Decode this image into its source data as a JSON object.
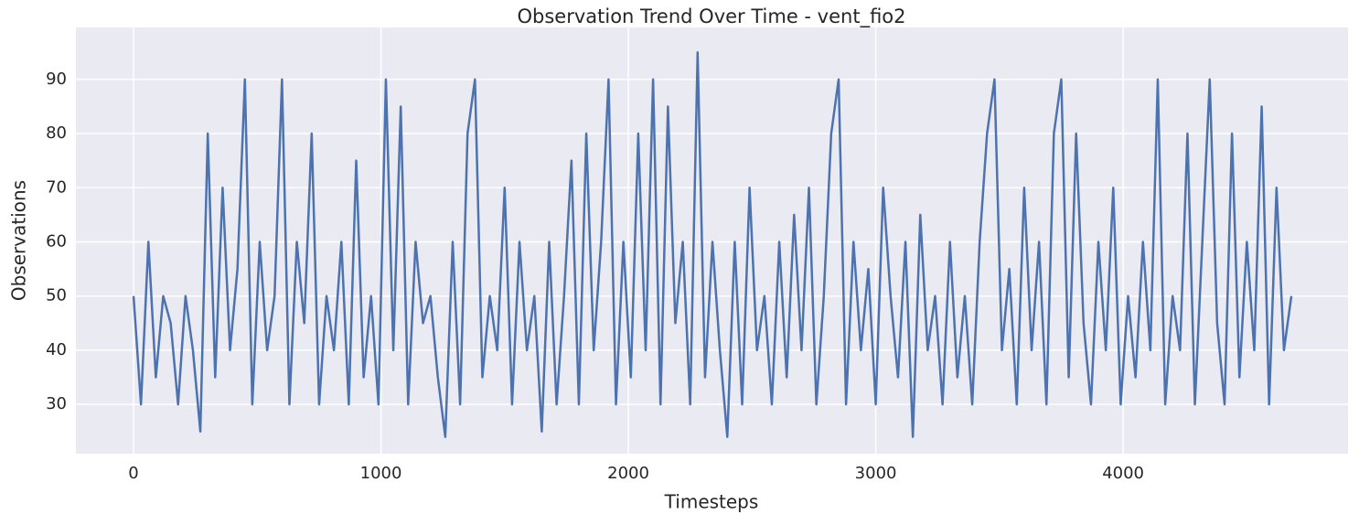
{
  "chart_data": {
    "type": "line",
    "title": "Observation Trend Over Time - vent_fio2",
    "x_label": "Timesteps",
    "y_label": "Observations",
    "x": [
      0,
      30,
      60,
      90,
      120,
      150,
      180,
      210,
      240,
      270,
      300,
      330,
      360,
      390,
      420,
      450,
      480,
      510,
      540,
      570,
      600,
      630,
      660,
      690,
      720,
      750,
      780,
      810,
      840,
      870,
      900,
      930,
      960,
      990,
      1020,
      1050,
      1080,
      1110,
      1140,
      1170,
      1200,
      1230,
      1260,
      1290,
      1320,
      1350,
      1380,
      1410,
      1440,
      1470,
      1500,
      1530,
      1560,
      1590,
      1620,
      1650,
      1680,
      1710,
      1740,
      1770,
      1800,
      1830,
      1860,
      1890,
      1920,
      1950,
      1980,
      2010,
      2040,
      2070,
      2100,
      2130,
      2160,
      2190,
      2220,
      2250,
      2280,
      2310,
      2340,
      2370,
      2400,
      2430,
      2460,
      2490,
      2520,
      2550,
      2580,
      2610,
      2640,
      2670,
      2700,
      2730,
      2760,
      2790,
      2820,
      2850,
      2880,
      2910,
      2940,
      2970,
      3000,
      3030,
      3060,
      3090,
      3120,
      3150,
      3180,
      3210,
      3240,
      3270,
      3300,
      3330,
      3360,
      3390,
      3420,
      3450,
      3480,
      3510,
      3540,
      3570,
      3600,
      3630,
      3660,
      3690,
      3720,
      3750,
      3780,
      3810,
      3840,
      3870,
      3900,
      3930,
      3960,
      3990,
      4020,
      4050,
      4080,
      4110,
      4140,
      4170,
      4200,
      4230,
      4260,
      4290,
      4320,
      4350,
      4380,
      4410,
      4440,
      4470,
      4500,
      4530,
      4560,
      4590,
      4620,
      4650,
      4680
    ],
    "series": [
      {
        "name": "vent_fio2",
        "color": "#4c72b0",
        "values": [
          50,
          30,
          60,
          35,
          50,
          45,
          30,
          50,
          40,
          25,
          80,
          35,
          70,
          40,
          55,
          90,
          30,
          60,
          40,
          50,
          90,
          30,
          60,
          45,
          80,
          30,
          50,
          40,
          60,
          30,
          75,
          35,
          50,
          30,
          90,
          40,
          85,
          30,
          60,
          45,
          50,
          35,
          24,
          60,
          30,
          80,
          90,
          35,
          50,
          40,
          70,
          30,
          60,
          40,
          50,
          25,
          60,
          30,
          50,
          75,
          30,
          80,
          40,
          60,
          90,
          30,
          60,
          35,
          80,
          40,
          90,
          30,
          85,
          45,
          60,
          30,
          95,
          35,
          60,
          40,
          24,
          60,
          30,
          70,
          40,
          50,
          30,
          60,
          35,
          65,
          40,
          70,
          30,
          50,
          80,
          90,
          30,
          60,
          40,
          55,
          30,
          70,
          50,
          35,
          60,
          24,
          65,
          40,
          50,
          30,
          60,
          35,
          50,
          30,
          60,
          80,
          90,
          40,
          55,
          30,
          70,
          40,
          60,
          30,
          80,
          90,
          35,
          80,
          45,
          30,
          60,
          40,
          70,
          30,
          50,
          35,
          60,
          40,
          90,
          30,
          50,
          40,
          80,
          30,
          60,
          90,
          45,
          30,
          80,
          35,
          60,
          40,
          85,
          30,
          70,
          40,
          50
        ]
      }
    ],
    "xlim": [
      -233,
      4909
    ],
    "ylim": [
      20.9,
      99.6
    ],
    "xticks": [
      0,
      1000,
      2000,
      3000,
      4000
    ],
    "yticks": [
      30,
      40,
      50,
      60,
      70,
      80,
      90
    ],
    "grid": true
  }
}
